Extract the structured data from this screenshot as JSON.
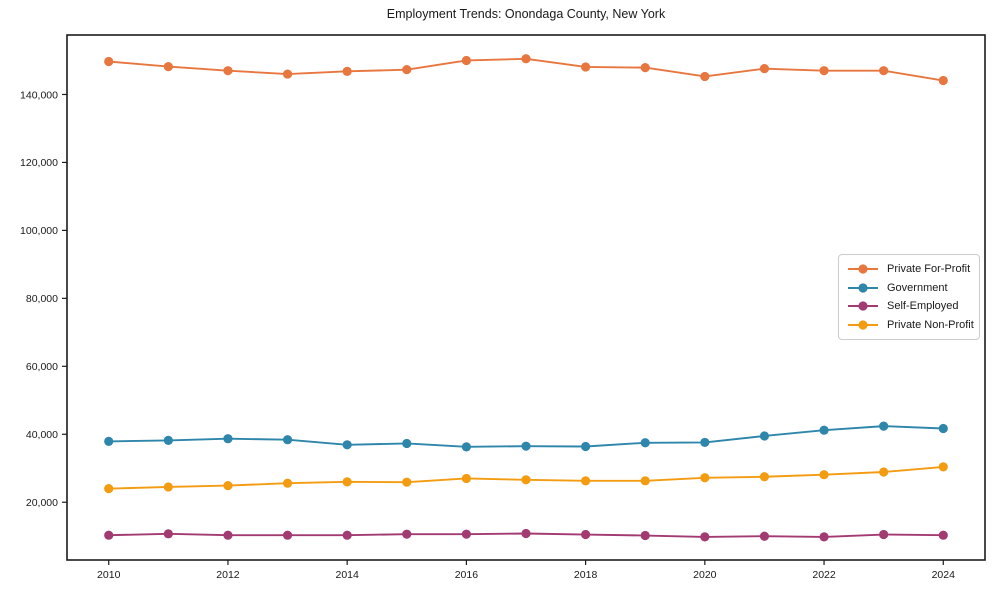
{
  "title": "Employment Trends: Onondaga County, New York",
  "chart_data": {
    "type": "line",
    "title": "Employment Trends: Onondaga County, New York",
    "xlabel": "",
    "ylabel": "",
    "grid": false,
    "legend_position": "center right",
    "xlim": [
      2009.3,
      2024.7
    ],
    "ylim": [
      3000,
      157500
    ],
    "x": [
      2010,
      2011,
      2012,
      2013,
      2014,
      2015,
      2016,
      2017,
      2018,
      2019,
      2020,
      2021,
      2022,
      2023,
      2024
    ],
    "x_ticks": {
      "values": [
        2010,
        2012,
        2014,
        2016,
        2018,
        2020,
        2022,
        2024
      ],
      "labels": [
        "2010",
        "2012",
        "2014",
        "2016",
        "2018",
        "2020",
        "2022",
        "2024"
      ]
    },
    "y_ticks": {
      "values": [
        20000,
        40000,
        60000,
        80000,
        100000,
        120000,
        140000
      ],
      "labels": [
        "20,000",
        "40,000",
        "60,000",
        "80,000",
        "100,000",
        "120,000",
        "140,000"
      ]
    },
    "series": [
      {
        "name": "Private For-Profit",
        "color": "#E8763F",
        "values": [
          149700,
          148200,
          147000,
          146000,
          146800,
          147300,
          150000,
          150500,
          148100,
          147900,
          145300,
          147600,
          147000,
          147000,
          144100
        ]
      },
      {
        "name": "Government",
        "color": "#2E86AB",
        "values": [
          37900,
          38200,
          38700,
          38400,
          36900,
          37300,
          36300,
          36500,
          36400,
          37500,
          37600,
          39500,
          41200,
          42400,
          41700
        ]
      },
      {
        "name": "Self-Employed",
        "color": "#A23B72",
        "values": [
          10300,
          10700,
          10300,
          10300,
          10300,
          10600,
          10600,
          10800,
          10500,
          10200,
          9800,
          10000,
          9800,
          10500,
          10300
        ]
      },
      {
        "name": "Private Non-Profit",
        "color": "#F39C12",
        "values": [
          24000,
          24500,
          24900,
          25600,
          26000,
          25900,
          27000,
          26600,
          26300,
          26300,
          27200,
          27500,
          28100,
          28900,
          30400
        ]
      }
    ]
  }
}
